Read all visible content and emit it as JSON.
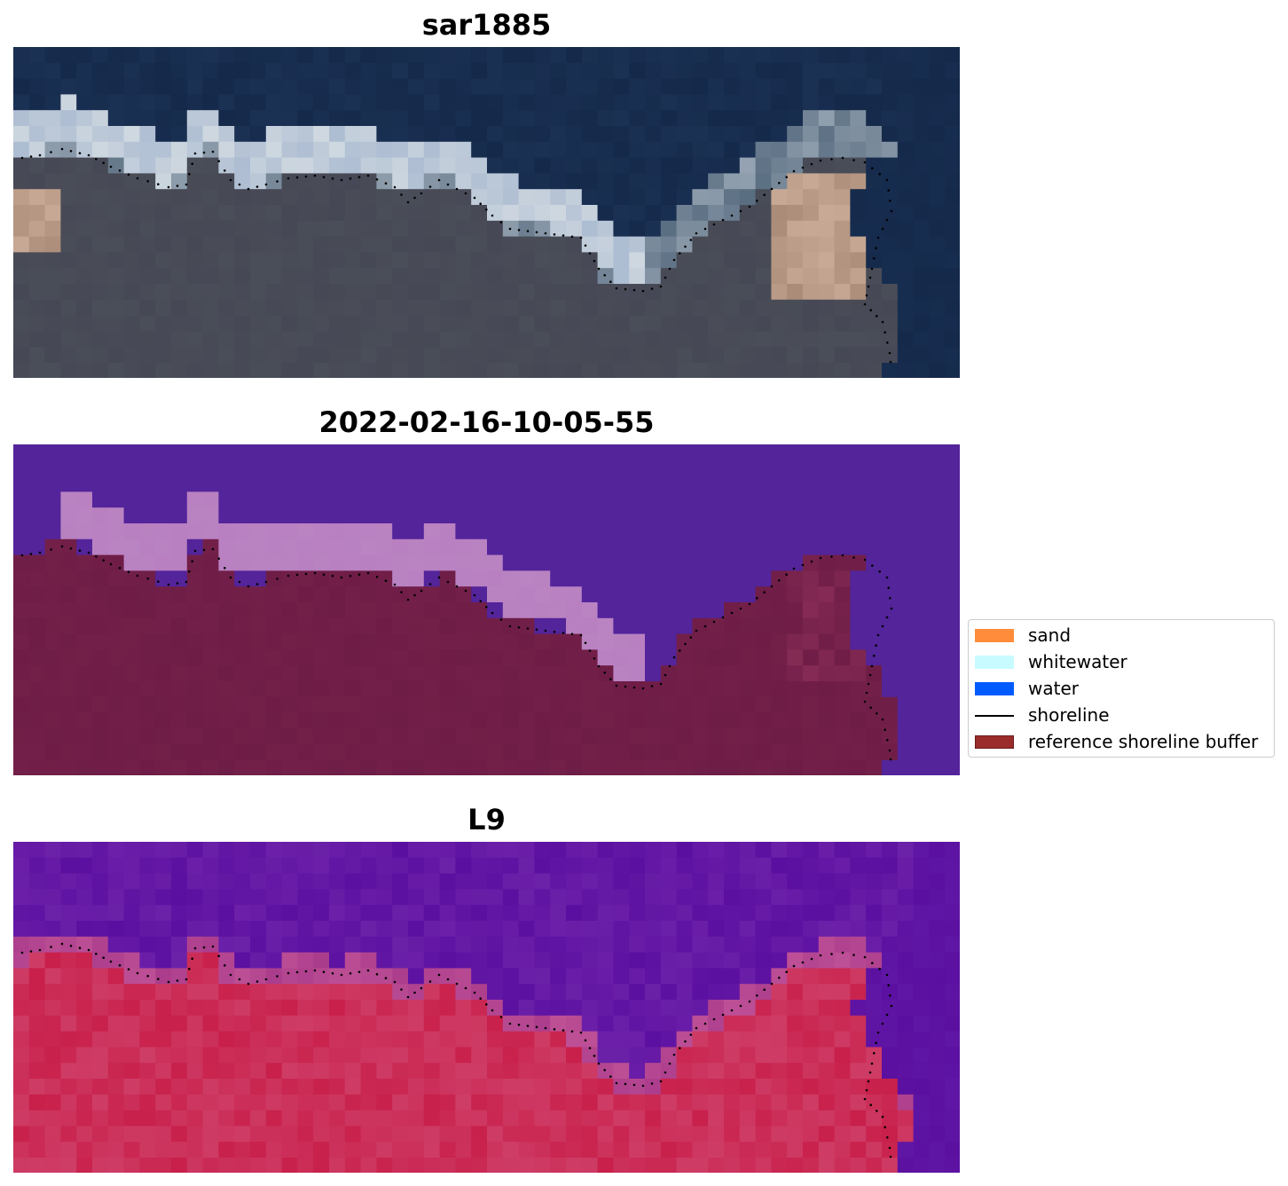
{
  "panels": [
    {
      "title": "sar1885",
      "kind": "rgb-image"
    },
    {
      "title": "2022-02-16-10-05-55",
      "kind": "classification"
    },
    {
      "title": "L9",
      "kind": "index-map"
    }
  ],
  "legend": {
    "items": [
      {
        "label": "sand",
        "color": "#ff8c3a",
        "type": "patch"
      },
      {
        "label": "whitewater",
        "color": "#c8fbff",
        "type": "patch"
      },
      {
        "label": "water",
        "color": "#005bff",
        "type": "patch"
      },
      {
        "label": "shoreline",
        "color": "#000000",
        "type": "line"
      },
      {
        "label": "reference shoreline buffer",
        "color": "#9a2c2c",
        "type": "patch-edge"
      }
    ]
  },
  "colors": {
    "rgb_sky": "#15294a",
    "rgb_surf": "#cfd8e0",
    "rgb_land": "#4a4e58",
    "class_water_overlay": "#53249a",
    "class_whitewater_overlay": "#b880c0",
    "class_land": "#6e1d47",
    "index_high": "#c8204b",
    "index_low": "#5b0fa0",
    "shoreline_points": "#000000"
  }
}
